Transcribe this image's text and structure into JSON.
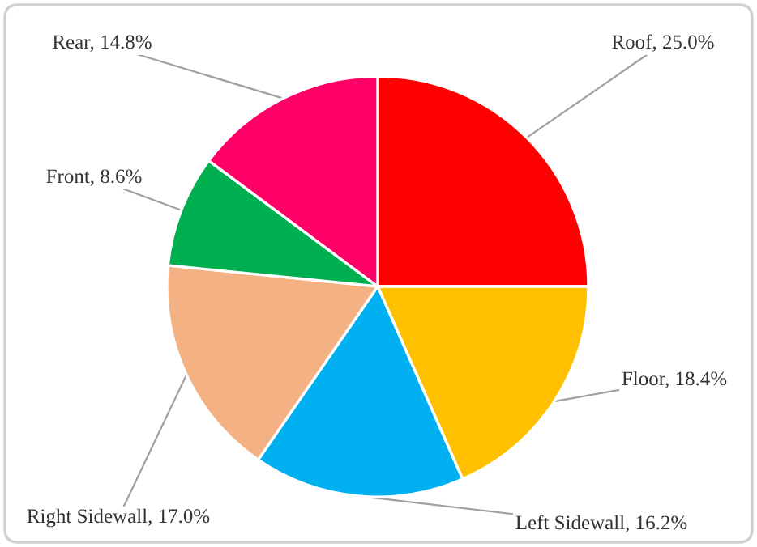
{
  "chart_data": {
    "type": "pie",
    "categories": [
      "Roof",
      "Floor",
      "Left Sidewall",
      "Right Sidewall",
      "Front",
      "Rear"
    ],
    "values": [
      25.0,
      18.4,
      16.2,
      17.0,
      8.6,
      14.8
    ],
    "colors": [
      "#ff0000",
      "#ffc000",
      "#00b0f0",
      "#f4b183",
      "#00b050",
      "#ff0066"
    ],
    "value_labels": [
      "25.0%",
      "18.4%",
      "16.2%",
      "17.0%",
      "8.6%",
      "14.8%"
    ]
  }
}
